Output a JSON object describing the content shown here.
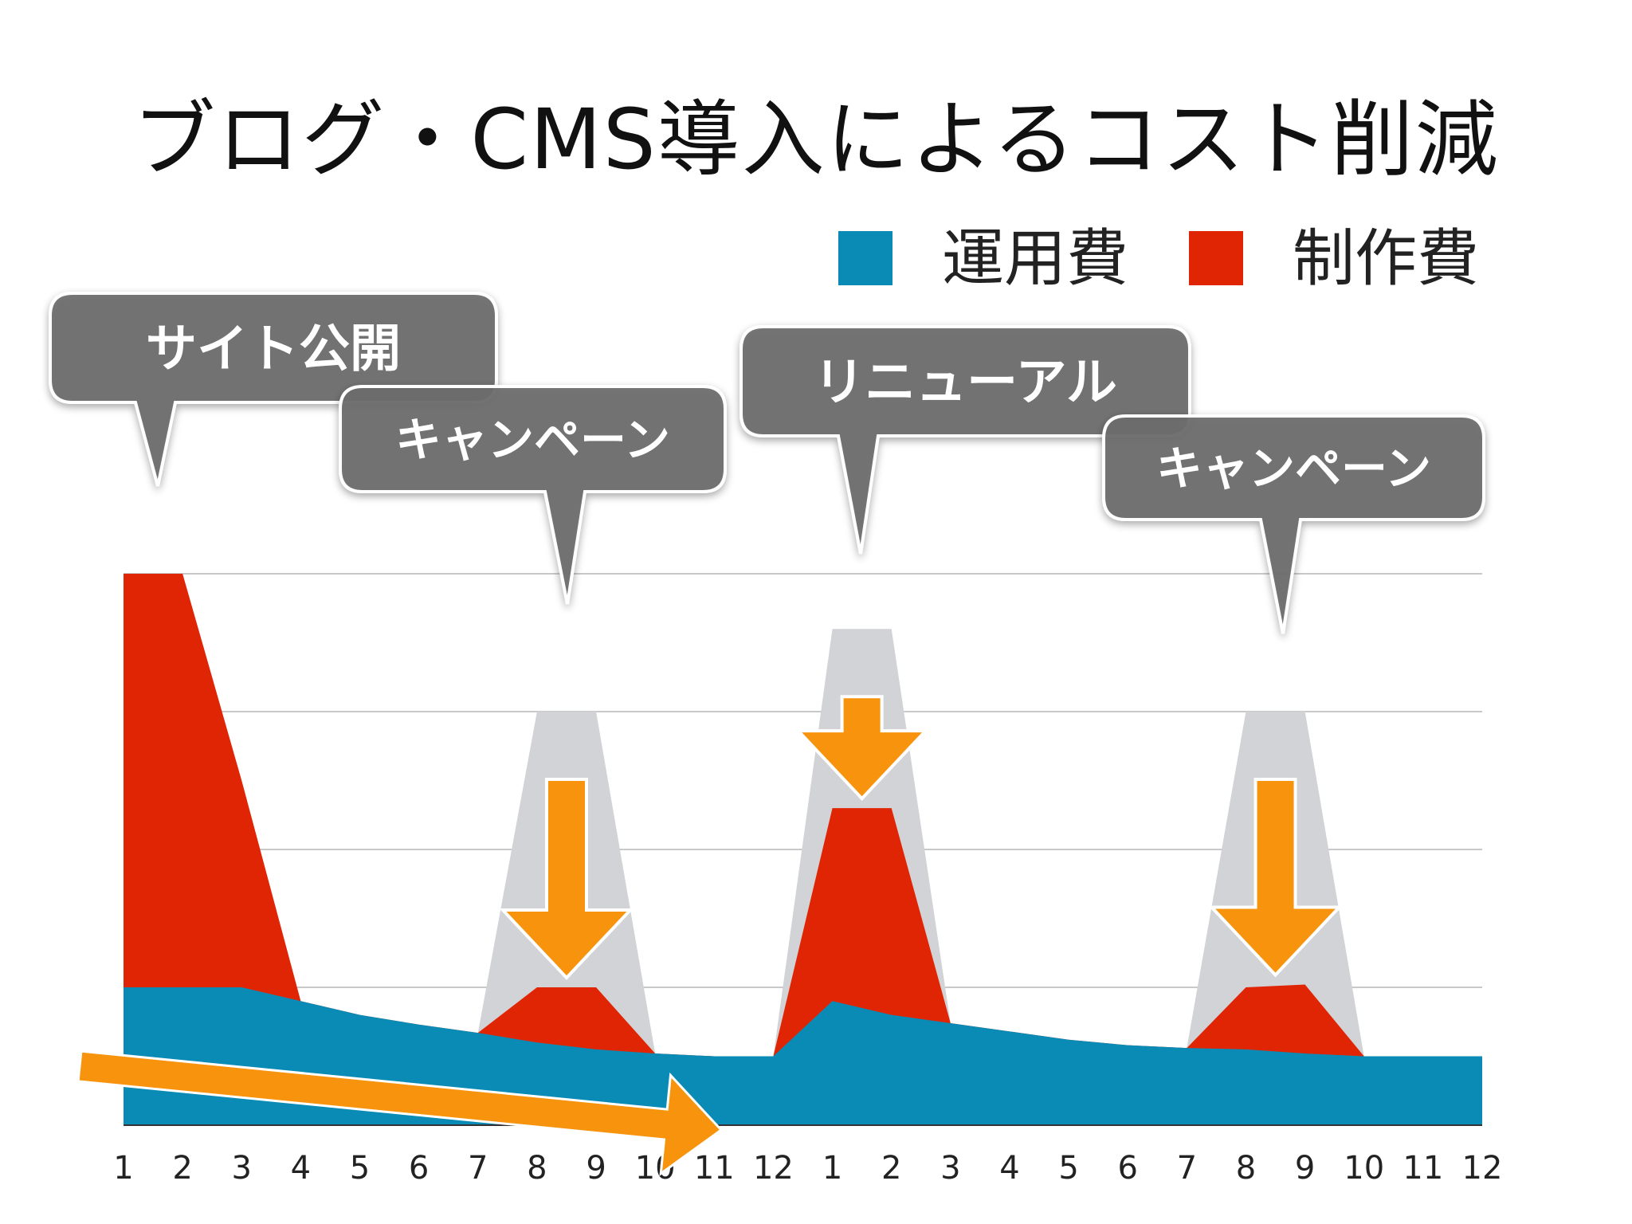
{
  "title": "ブログ・CMS導入によるコスト削減",
  "legend": [
    {
      "label": "運用費",
      "color": "#0a8bb5"
    },
    {
      "label": "制作費",
      "color": "#e02505"
    }
  ],
  "callouts": [
    {
      "text": "サイト公開"
    },
    {
      "text": "キャンペーン"
    },
    {
      "text": "リニューアル"
    },
    {
      "text": "キャンペーン"
    }
  ],
  "chart_data": {
    "type": "area",
    "stacked": true,
    "categories": [
      "1",
      "2",
      "3",
      "4",
      "5",
      "6",
      "7",
      "8",
      "9",
      "10",
      "11",
      "12",
      "1",
      "2",
      "3",
      "4",
      "5",
      "6",
      "7",
      "8",
      "9",
      "10",
      "11",
      "12"
    ],
    "ylim": [
      0,
      4
    ],
    "grid": true,
    "legend_position": "top-right",
    "series": [
      {
        "name": "運用費",
        "color": "#0a8bb5",
        "values": [
          1.0,
          1.0,
          1.0,
          0.9,
          0.8,
          0.73,
          0.67,
          0.6,
          0.55,
          0.52,
          0.5,
          0.5,
          0.9,
          0.8,
          0.74,
          0.68,
          0.62,
          0.58,
          0.56,
          0.55,
          0.52,
          0.5,
          0.5,
          0.5
        ]
      },
      {
        "name": "制作費",
        "color": "#e02505",
        "values": [
          3.0,
          3.0,
          1.5,
          0.0,
          0.0,
          0.0,
          0.0,
          0.4,
          0.45,
          0.0,
          0.0,
          0.0,
          1.4,
          1.5,
          0.0,
          0.0,
          0.0,
          0.0,
          0.0,
          0.45,
          0.5,
          0.0,
          0.0,
          0.0
        ]
      }
    ],
    "before_totals": [
      {
        "index": 7,
        "value": 3.0
      },
      {
        "index": 8,
        "value": 3.0
      },
      {
        "index": 12,
        "value": 3.6
      },
      {
        "index": 13,
        "value": 3.6
      },
      {
        "index": 19,
        "value": 3.0
      },
      {
        "index": 20,
        "value": 3.0
      }
    ],
    "accent_color": "#f7930c",
    "gray_color": "#d2d3d7",
    "callout_color": "#6d6d6d"
  }
}
